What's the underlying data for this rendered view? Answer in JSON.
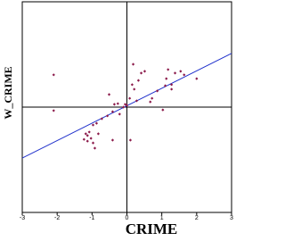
{
  "chart_data": {
    "type": "scatter",
    "xlabel": "CRIME",
    "ylabel": "W_CRIME",
    "xlim": [
      -3,
      3
    ],
    "ylim": [
      -3,
      3
    ],
    "xticks": [
      -3,
      -2,
      -1,
      0,
      1,
      2,
      3
    ],
    "series": [
      {
        "color": "#8b1a4a",
        "x": [
          -2.1,
          -2.1,
          0.18,
          0.41,
          0.51,
          0.15,
          0.33,
          0.21,
          0.08,
          -0.05,
          0,
          -0.26,
          -0.36,
          -0.51,
          -0.41,
          -0.56,
          -0.72,
          -0.87,
          -0.97,
          -1.08,
          -1.13,
          -1.03,
          -1.13,
          -0.97,
          -1.23,
          -0.92,
          -0.82,
          -1.18,
          -0.41,
          0.1,
          0.72,
          0.87,
          1.1,
          1.18,
          1.13,
          1.28,
          1.38,
          1.54,
          1.64,
          2.0,
          1.03,
          0.67,
          -0.21,
          -0.1,
          0.28,
          1.28
        ],
        "values": [
          0.92,
          -0.1,
          1.22,
          0.97,
          1.02,
          0.64,
          0.76,
          0.51,
          0.25,
          0.08,
          0.05,
          0.1,
          0.08,
          0.36,
          -0.13,
          -0.25,
          -0.33,
          -0.46,
          -0.51,
          -0.71,
          -0.81,
          -0.89,
          -0.97,
          -1.02,
          -0.92,
          -1.17,
          -0.76,
          -0.76,
          -0.94,
          -0.94,
          0.25,
          0.46,
          0.61,
          1.07,
          0.81,
          0.64,
          0.97,
          1.02,
          0.92,
          0.81,
          -0.08,
          0.15,
          -0.2,
          0.0,
          0.18,
          0.51
        ]
      }
    ],
    "fit_line": {
      "color": "#2233cc",
      "x": [
        -3,
        3
      ],
      "y": [
        -1.45,
        1.53
      ]
    }
  }
}
